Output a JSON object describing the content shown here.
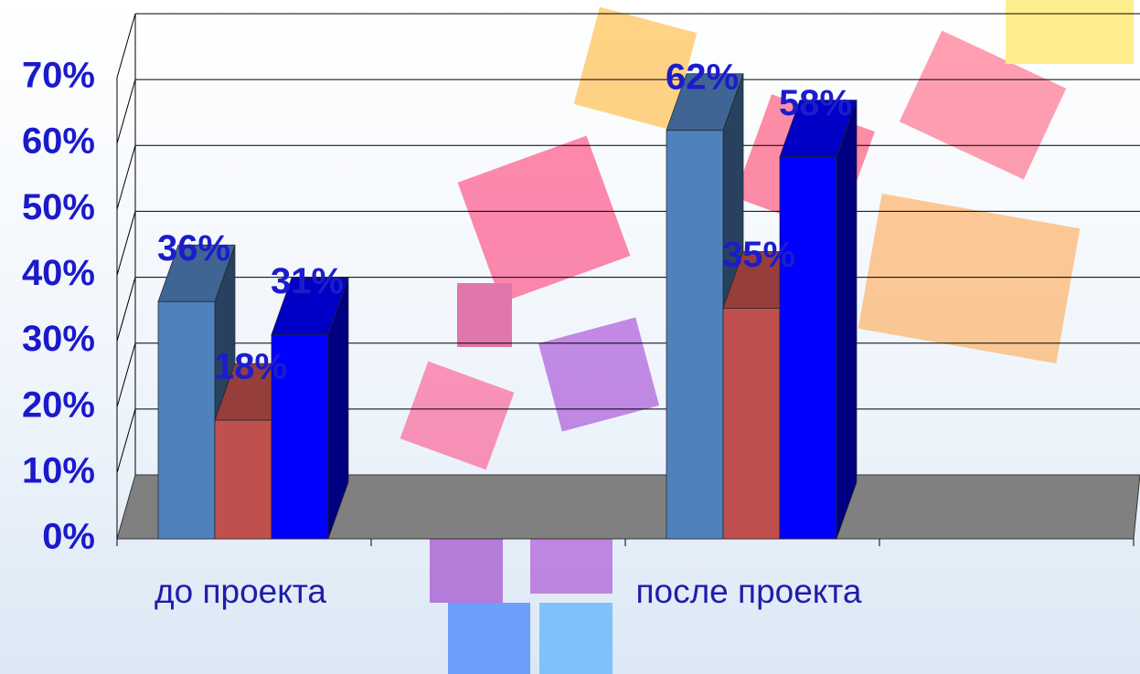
{
  "chart_data": {
    "type": "bar3d",
    "categories": [
      "до проекта",
      null,
      "после проекта",
      null
    ],
    "series": [
      {
        "color": "#4f81bd",
        "values": [
          36,
          null,
          62,
          null
        ],
        "value_labels": [
          "36%",
          null,
          "62%",
          null
        ]
      },
      {
        "color": "#c0504d",
        "values": [
          18,
          null,
          35,
          null
        ],
        "value_labels": [
          "18%",
          null,
          "35%",
          null
        ]
      },
      {
        "color": "#0000ff",
        "values": [
          31,
          null,
          58,
          null
        ],
        "value_labels": [
          "31%",
          null,
          "58%",
          null
        ]
      }
    ],
    "ylim": [
      0,
      70
    ],
    "yticks": [
      {
        "value": 0,
        "label": "0%"
      },
      {
        "value": 10,
        "label": "10%"
      },
      {
        "value": 20,
        "label": "20%"
      },
      {
        "value": 30,
        "label": "30%"
      },
      {
        "value": 40,
        "label": "40%"
      },
      {
        "value": 50,
        "label": "50%"
      },
      {
        "value": 60,
        "label": "60%"
      },
      {
        "value": 70,
        "label": "70%"
      }
    ],
    "grid": true
  }
}
